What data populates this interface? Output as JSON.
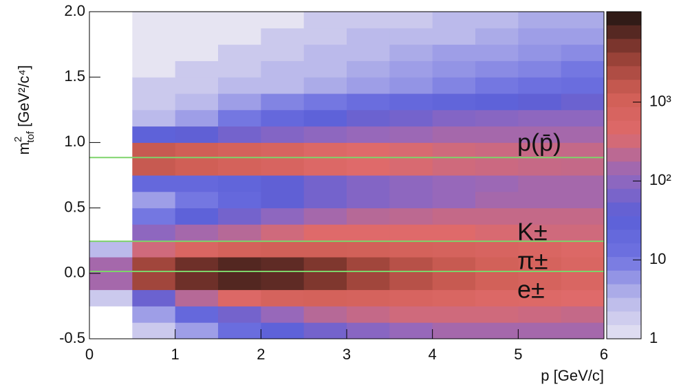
{
  "chart_data": {
    "type": "heatmap",
    "xlabel": "p [GeV/c]",
    "ylabel": {
      "symbol": "m",
      "sup": "2",
      "sub": "tof",
      "unit": "[GeV²/c⁴]"
    },
    "xlim": [
      0,
      6
    ],
    "xticks": [
      0,
      1,
      2,
      3,
      4,
      5,
      6
    ],
    "ylim": [
      -0.5,
      2.0
    ],
    "yticks": [
      -0.5,
      {
        "value": 0,
        "label": "0.0"
      },
      0.5,
      {
        "value": 1,
        "label": "1.0"
      },
      1.5,
      {
        "value": 2,
        "label": "2.0"
      }
    ],
    "zlim": [
      1,
      14000
    ],
    "zlog": true,
    "zticks": [
      1,
      10,
      {
        "value": 100,
        "label": "10²"
      },
      {
        "value": 1000,
        "label": "10³"
      }
    ],
    "colors": [
      "#e6e4f2",
      "#b7b6ea",
      "#6f72e0",
      "#5b5fd8",
      "#9668bb",
      "#df6a6a",
      "#cf5e55",
      "#8e3c32",
      "#1e1412"
    ],
    "xbins": [
      0,
      0.5,
      1,
      1.5,
      2,
      2.5,
      3,
      3.5,
      4,
      4.5,
      5,
      5.5,
      6
    ],
    "ybins": [
      -0.5,
      -0.375,
      -0.25,
      -0.125,
      0,
      0.125,
      0.25,
      0.375,
      0.5,
      0.625,
      0.75,
      0.875,
      1,
      1.125,
      1.25,
      1.375,
      1.5,
      1.625,
      1.75,
      1.875,
      2
    ],
    "z": [
      [
        0,
        2,
        5,
        15,
        30,
        60,
        90,
        120,
        150,
        150,
        150,
        150
      ],
      [
        0,
        5,
        20,
        60,
        120,
        200,
        250,
        300,
        300,
        300,
        280,
        250
      ],
      [
        2,
        50,
        200,
        500,
        800,
        900,
        800,
        700,
        600,
        500,
        450,
        400
      ],
      [
        150,
        3000,
        6000,
        8000,
        7000,
        5000,
        3000,
        2000,
        1500,
        1000,
        800,
        600
      ],
      [
        150,
        3000,
        6000,
        8000,
        7000,
        5000,
        3000,
        2000,
        1500,
        1000,
        800,
        600
      ],
      [
        3,
        300,
        600,
        900,
        1100,
        1100,
        1000,
        900,
        800,
        700,
        600,
        500
      ],
      [
        0,
        100,
        150,
        200,
        300,
        400,
        400,
        400,
        400,
        350,
        300,
        300
      ],
      [
        0,
        10,
        30,
        60,
        100,
        150,
        200,
        220,
        250,
        250,
        250,
        250
      ],
      [
        0,
        5,
        10,
        20,
        40,
        60,
        80,
        100,
        120,
        150,
        150,
        150
      ],
      [
        0,
        20,
        20,
        25,
        40,
        60,
        80,
        100,
        120,
        130,
        150,
        150
      ],
      [
        0,
        1500,
        1200,
        900,
        700,
        500,
        400,
        350,
        300,
        280,
        260,
        250
      ],
      [
        0,
        1500,
        1200,
        900,
        700,
        500,
        400,
        350,
        300,
        280,
        260,
        250
      ],
      [
        0,
        30,
        40,
        60,
        80,
        100,
        120,
        130,
        150,
        150,
        150,
        150
      ],
      [
        0,
        3,
        5,
        10,
        20,
        30,
        50,
        60,
        80,
        90,
        100,
        100
      ],
      [
        0,
        2,
        3,
        5,
        8,
        10,
        15,
        20,
        25,
        30,
        40,
        50
      ],
      [
        0,
        2,
        2,
        3,
        3,
        4,
        5,
        6,
        8,
        10,
        12,
        15
      ],
      [
        0,
        1,
        2,
        2,
        3,
        3,
        4,
        5,
        6,
        7,
        8,
        10
      ],
      [
        0,
        1,
        1,
        2,
        2,
        3,
        3,
        4,
        5,
        5,
        6,
        7
      ],
      [
        0,
        1,
        1,
        1,
        2,
        2,
        3,
        3,
        3,
        4,
        5,
        5
      ],
      [
        0,
        1,
        1,
        1,
        1,
        2,
        2,
        2,
        3,
        3,
        4,
        4
      ]
    ],
    "lines": [
      0.885,
      0.245,
      0.015
    ],
    "line_color": "#7ed46a",
    "annotations": [
      "p(p̄)",
      "K±",
      "π±",
      "e±"
    ]
  }
}
